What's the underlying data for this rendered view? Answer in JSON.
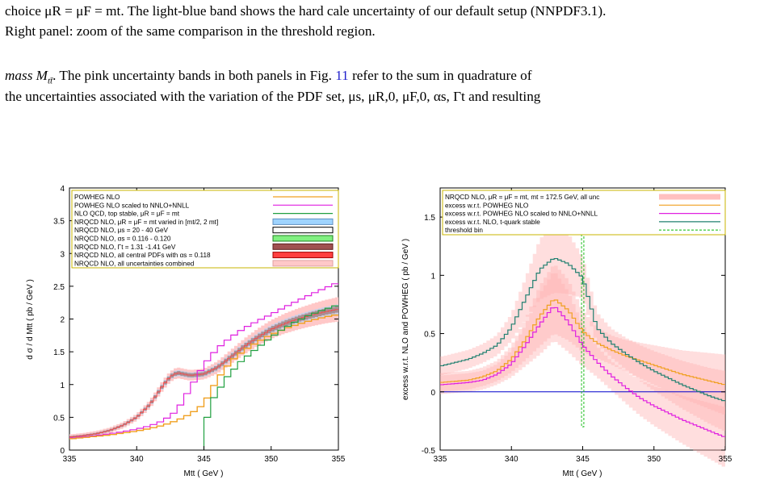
{
  "text": {
    "caption_line1": "choice μR = μF = mt. The light-blue band shows the hard cale uncertainty of our default setup (NNPDF3.1).",
    "caption_line2": "Right panel: zoom of the same comparison in the threshold region.",
    "body_line1_a": "mass M",
    "body_line1_b": ". The pink uncertainty bands in both panels in Fig.",
    "body_line1_ref": "11",
    "body_line1_c": "refer to the sum in quadrature of",
    "body_line2": "the uncertainties associated with the variation of the PDF set, μs, μR,0, μF,0, αs, Γt and resulting"
  },
  "colors": {
    "powheg": "#f0a020",
    "powheg_scaled": "#e020e0",
    "nlo_qcd": "#20a040",
    "hard_scale": "#9fd4ff",
    "mu_s": "#333333",
    "alpha_s": "#80f080",
    "gamma_t": "#a05050",
    "pdfs": "#ff4040",
    "combined": "#ffc8c8",
    "nrqcd": "#9a8a8a",
    "zero_line": "#0000cc",
    "nlo_stable_excess": "#208070",
    "threshold": "#20c020"
  },
  "chart_data": [
    {
      "type": "line",
      "xlabel": "Mtt  ( GeV )",
      "ylabel": "d σ / d Mtt   ( pb / GeV )",
      "xlim": [
        335,
        355
      ],
      "ylim": [
        0,
        4
      ],
      "xticks": [
        "335",
        "340",
        "345",
        "350",
        "355"
      ],
      "yticks": [
        "0",
        "0.5",
        "1",
        "1.5",
        "2",
        "2.5",
        "3",
        "3.5",
        "4"
      ],
      "legend_position": "top-left",
      "legend": [
        "POWHEG NLO",
        "POWHEG NLO scaled to NNLO+NNLL",
        "NLO QCD, top stable, μR = μF = mt",
        "NRQCD NLO, μR = μF = mt varied in [mt/2, 2 mt]",
        "NRQCD NLO, μs = 20 - 40 GeV",
        "NRQCD NLO, αs = 0.116 - 0.120",
        "NRQCD NLO, Γt = 1.31 -1.41 GeV",
        "NRQCD NLO, all central PDFs with αs = 0.118",
        "NRQCD NLO, all uncertainties combined"
      ],
      "series": [
        {
          "name": "POWHEG NLO",
          "x": [
            335,
            336,
            337,
            338,
            339,
            340,
            341,
            342,
            343,
            344,
            345,
            346,
            347,
            348,
            349,
            350,
            351,
            352,
            353,
            354,
            355
          ],
          "values": [
            0.17,
            0.19,
            0.21,
            0.23,
            0.26,
            0.29,
            0.33,
            0.38,
            0.45,
            0.55,
            0.7,
            1.08,
            1.35,
            1.52,
            1.65,
            1.76,
            1.85,
            1.92,
            1.98,
            2.03,
            2.07
          ]
        },
        {
          "name": "POWHEG NLO scaled to NNLO+NNLL",
          "x": [
            335,
            336,
            337,
            338,
            339,
            340,
            341,
            342,
            343,
            344,
            345,
            346,
            347,
            348,
            349,
            350,
            351,
            352,
            353,
            354,
            355
          ],
          "values": [
            0.18,
            0.2,
            0.22,
            0.25,
            0.28,
            0.32,
            0.37,
            0.45,
            0.6,
            0.95,
            1.3,
            1.55,
            1.72,
            1.86,
            1.97,
            2.07,
            2.18,
            2.28,
            2.38,
            2.47,
            2.56
          ]
        },
        {
          "name": "NLO QCD, top stable, μR = μF = mt",
          "x": [
            345,
            345.5,
            346,
            347,
            348,
            349,
            350,
            351,
            352,
            353,
            354,
            355
          ],
          "values": [
            0.0,
            0.5,
            0.8,
            1.12,
            1.35,
            1.52,
            1.68,
            1.83,
            1.95,
            2.05,
            2.13,
            2.2
          ]
        },
        {
          "name": "NRQCD NLO",
          "x": [
            335,
            336,
            337,
            338,
            339,
            340,
            341,
            342,
            342.5,
            343,
            343.5,
            344,
            345,
            346,
            347,
            348,
            349,
            350,
            351,
            352,
            353,
            354,
            355
          ],
          "values": [
            0.2,
            0.22,
            0.25,
            0.3,
            0.38,
            0.5,
            0.7,
            1.0,
            1.12,
            1.18,
            1.16,
            1.14,
            1.16,
            1.26,
            1.42,
            1.58,
            1.72,
            1.84,
            1.93,
            2.0,
            2.06,
            2.11,
            2.15
          ]
        }
      ]
    },
    {
      "type": "line",
      "xlabel": "Mtt  ( GeV )",
      "ylabel": "excess w.r.t. NLO and POWHEG   ( pb / GeV )",
      "xlim": [
        335,
        355
      ],
      "ylim": [
        -0.5,
        1.75
      ],
      "xticks": [
        "335",
        "340",
        "345",
        "350",
        "355"
      ],
      "yticks": [
        "-0.5",
        "0",
        "0.5",
        "1",
        "1.5"
      ],
      "legend_position": "top-left",
      "legend": [
        "NRQCD NLO, μR = μF = mt, mt = 172.5 GeV, all unc",
        "excess w.r.t. POWHEG NLO",
        "excess w.r.t. POWHEG NLO scaled to NNLO+NNLL",
        "excess w.r.t. NLO, t-quark stable",
        "threshold bin"
      ],
      "series": [
        {
          "name": "excess w.r.t. POWHEG NLO",
          "x": [
            335,
            336,
            337,
            338,
            339,
            340,
            341,
            342,
            343,
            344,
            345,
            346,
            347,
            348,
            349,
            350,
            351,
            352,
            353,
            354,
            355
          ],
          "values": [
            0.08,
            0.09,
            0.1,
            0.13,
            0.18,
            0.28,
            0.45,
            0.65,
            0.8,
            0.7,
            0.52,
            0.42,
            0.36,
            0.31,
            0.27,
            0.23,
            0.19,
            0.15,
            0.12,
            0.09,
            0.06
          ]
        },
        {
          "name": "excess w.r.t. POWHEG NLO scaled to NNLO+NNLL",
          "x": [
            335,
            336,
            337,
            338,
            339,
            340,
            341,
            342,
            343,
            344,
            345,
            346,
            347,
            348,
            349,
            350,
            351,
            352,
            353,
            354,
            355
          ],
          "values": [
            0.06,
            0.07,
            0.08,
            0.1,
            0.15,
            0.24,
            0.4,
            0.58,
            0.74,
            0.6,
            0.4,
            0.26,
            0.14,
            0.04,
            -0.05,
            -0.12,
            -0.18,
            -0.24,
            -0.29,
            -0.34,
            -0.39
          ]
        },
        {
          "name": "excess w.r.t. NLO, t-quark stable",
          "x": [
            335,
            336,
            337,
            338,
            339,
            340,
            341,
            342,
            343,
            344,
            345,
            346,
            347,
            348,
            349,
            350,
            351,
            352,
            353,
            354,
            355
          ],
          "values": [
            0.22,
            0.25,
            0.28,
            0.33,
            0.4,
            0.55,
            0.8,
            1.05,
            1.15,
            1.1,
            0.98,
            0.55,
            0.42,
            0.33,
            0.25,
            0.18,
            0.12,
            0.06,
            0.01,
            -0.04,
            -0.08
          ]
        }
      ],
      "threshold_x": 345,
      "threshold_range": [
        -0.3,
        1.35
      ]
    }
  ]
}
